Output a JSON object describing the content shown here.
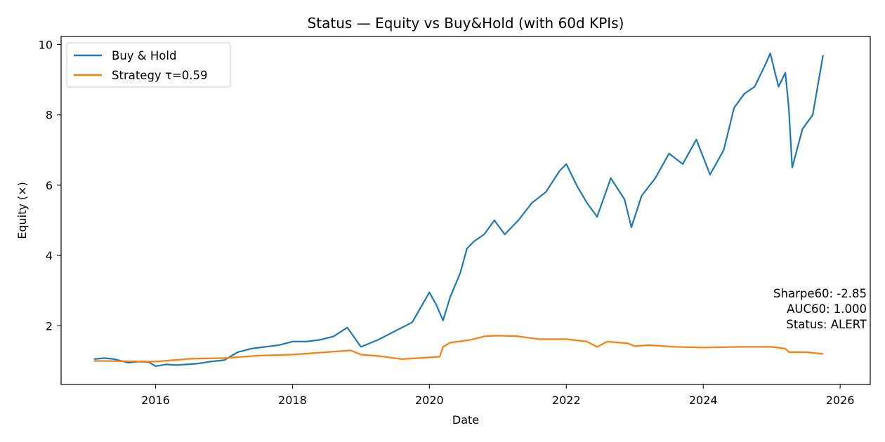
{
  "chart_data": {
    "type": "line",
    "title": "Status — Equity vs Buy&Hold (with 60d KPIs)",
    "xlabel": "Date",
    "ylabel": "Equity (×)",
    "x_ticks": [
      "2016",
      "2018",
      "2020",
      "2022",
      "2024",
      "2026"
    ],
    "y_ticks": [
      "2",
      "4",
      "6",
      "8",
      "10"
    ],
    "xlim": [
      2014.62,
      2026.44
    ],
    "ylim": [
      0.33,
      10.23
    ],
    "legend_position": "top-left",
    "grid": false,
    "series": [
      {
        "name": "Buy & Hold",
        "color": "#1f77b4",
        "x": [
          2015.1,
          2015.25,
          2015.4,
          2015.6,
          2015.75,
          2015.9,
          2016.0,
          2016.15,
          2016.3,
          2016.45,
          2016.6,
          2016.8,
          2017.0,
          2017.2,
          2017.4,
          2017.6,
          2017.8,
          2018.0,
          2018.2,
          2018.4,
          2018.6,
          2018.8,
          2019.0,
          2019.25,
          2019.5,
          2019.75,
          2020.0,
          2020.1,
          2020.2,
          2020.3,
          2020.45,
          2020.55,
          2020.65,
          2020.8,
          2020.95,
          2021.1,
          2021.3,
          2021.5,
          2021.7,
          2021.9,
          2022.0,
          2022.15,
          2022.3,
          2022.45,
          2022.65,
          2022.85,
          2022.95,
          2023.1,
          2023.3,
          2023.5,
          2023.7,
          2023.9,
          2024.1,
          2024.3,
          2024.45,
          2024.6,
          2024.75,
          2024.9,
          2024.98,
          2025.1,
          2025.2,
          2025.25,
          2025.3,
          2025.45,
          2025.6,
          2025.75
        ],
        "values": [
          1.05,
          1.08,
          1.05,
          0.95,
          0.98,
          0.97,
          0.85,
          0.9,
          0.88,
          0.9,
          0.92,
          0.98,
          1.02,
          1.25,
          1.35,
          1.4,
          1.45,
          1.55,
          1.55,
          1.6,
          1.7,
          1.95,
          1.4,
          1.6,
          1.85,
          2.1,
          2.95,
          2.6,
          2.15,
          2.8,
          3.5,
          4.2,
          4.4,
          4.6,
          5.0,
          4.6,
          5.0,
          5.5,
          5.8,
          6.4,
          6.6,
          6.0,
          5.5,
          5.1,
          6.2,
          5.6,
          4.8,
          5.7,
          6.2,
          6.9,
          6.6,
          7.3,
          6.3,
          7.0,
          8.2,
          8.6,
          8.8,
          9.4,
          9.75,
          8.8,
          9.2,
          8.2,
          6.5,
          7.6,
          8.0,
          9.7
        ]
      },
      {
        "name": "Strategy τ=0.59",
        "color": "#ff7f0e",
        "x": [
          2015.1,
          2015.6,
          2016.0,
          2016.5,
          2017.0,
          2017.5,
          2018.0,
          2018.5,
          2018.85,
          2019.0,
          2019.3,
          2019.6,
          2020.0,
          2020.15,
          2020.2,
          2020.3,
          2020.6,
          2020.8,
          2021.0,
          2021.3,
          2021.6,
          2022.0,
          2022.3,
          2022.45,
          2022.6,
          2022.9,
          2023.0,
          2023.2,
          2023.6,
          2024.0,
          2024.5,
          2025.0,
          2025.2,
          2025.25,
          2025.5,
          2025.75
        ],
        "values": [
          1.0,
          0.99,
          0.98,
          1.06,
          1.08,
          1.15,
          1.18,
          1.25,
          1.3,
          1.18,
          1.13,
          1.05,
          1.1,
          1.12,
          1.4,
          1.52,
          1.6,
          1.7,
          1.72,
          1.7,
          1.62,
          1.62,
          1.55,
          1.4,
          1.55,
          1.5,
          1.42,
          1.45,
          1.4,
          1.38,
          1.4,
          1.4,
          1.35,
          1.25,
          1.25,
          1.2
        ]
      }
    ],
    "annotations": [
      "Sharpe60: -2.85",
      "AUC60: 1.000",
      "Status: ALERT"
    ]
  }
}
